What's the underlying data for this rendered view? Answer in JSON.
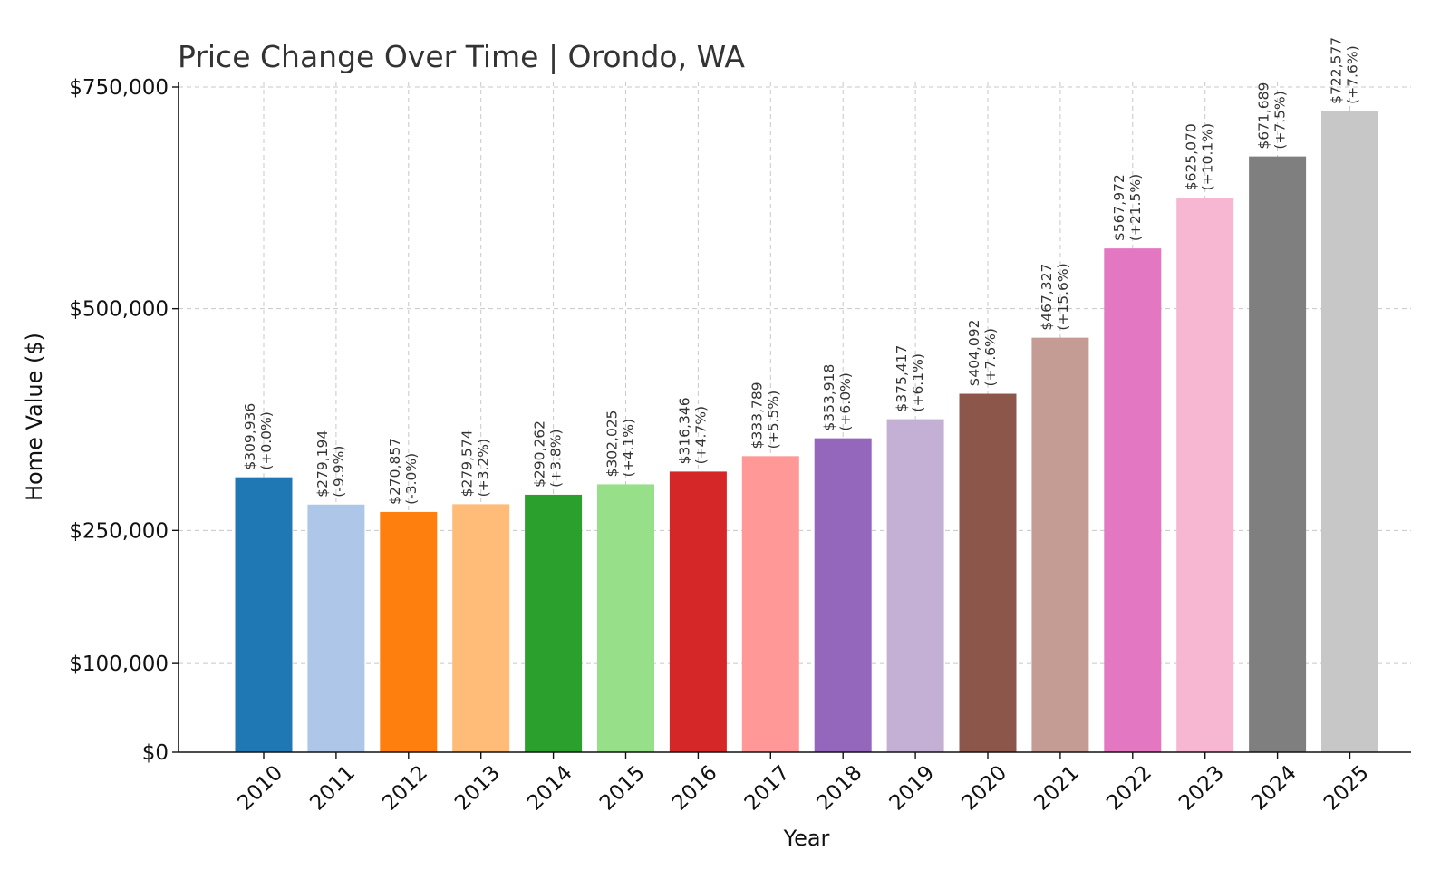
{
  "chart_data": {
    "type": "bar",
    "title": "Price Change Over Time | Orondo, WA",
    "xlabel": "Year",
    "ylabel": "Home Value ($)",
    "ylim": [
      0,
      750000
    ],
    "yticks": [
      0,
      100000,
      250000,
      500000,
      750000
    ],
    "ytick_labels": [
      "$0",
      "$100,000",
      "$250,000",
      "$500,000",
      "$750,000"
    ],
    "grid": true,
    "categories": [
      "2010",
      "2011",
      "2012",
      "2013",
      "2014",
      "2015",
      "2016",
      "2017",
      "2018",
      "2019",
      "2020",
      "2021",
      "2022",
      "2023",
      "2024",
      "2025"
    ],
    "values": [
      309936,
      279194,
      270857,
      279574,
      290262,
      302025,
      316346,
      333789,
      353918,
      375417,
      404092,
      467327,
      567972,
      625070,
      671689,
      722577
    ],
    "value_labels": [
      "$309,936",
      "$279,194",
      "$270,857",
      "$279,574",
      "$290,262",
      "$302,025",
      "$316,346",
      "$333,789",
      "$353,918",
      "$375,417",
      "$404,092",
      "$467,327",
      "$567,972",
      "$625,070",
      "$671,689",
      "$722,577"
    ],
    "change_labels": [
      "(+0.0%)",
      "(-9.9%)",
      "(-3.0%)",
      "(+3.2%)",
      "(+3.8%)",
      "(+4.1%)",
      "(+4.7%)",
      "(+5.5%)",
      "(+6.0%)",
      "(+6.1%)",
      "(+7.6%)",
      "(+15.6%)",
      "(+21.5%)",
      "(+10.1%)",
      "(+7.5%)",
      "(+7.6%)"
    ],
    "colors": [
      "#1f77b4",
      "#aec7e8",
      "#ff7f0e",
      "#ffbb78",
      "#2ca02c",
      "#98df8a",
      "#d62728",
      "#ff9896",
      "#9467bd",
      "#c5b0d5",
      "#8c564b",
      "#c49c94",
      "#e377c2",
      "#f7b6d2",
      "#7f7f7f",
      "#c7c7c7"
    ]
  }
}
